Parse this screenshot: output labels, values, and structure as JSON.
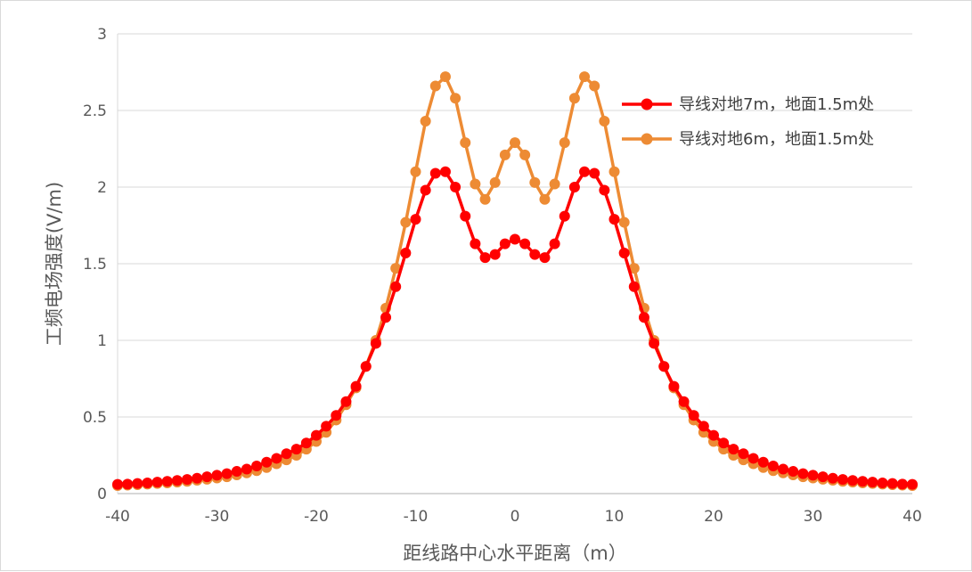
{
  "chart_data": {
    "type": "line",
    "title": "",
    "xlabel": "距线路中心水平距离（m）",
    "ylabel": "工频电场强度(V/m)",
    "xlim": [
      -40,
      40
    ],
    "ylim": [
      0,
      3
    ],
    "xticks": [
      "-40",
      "-30",
      "-20",
      "-10",
      "0",
      "10",
      "20",
      "30",
      "40"
    ],
    "yticks": [
      "0",
      "0.5",
      "1",
      "1.5",
      "2",
      "2.5",
      "3"
    ],
    "grid": "horizontal",
    "legend_position": "top-right",
    "x": [
      -40,
      -39,
      -38,
      -37,
      -36,
      -35,
      -34,
      -33,
      -32,
      -31,
      -30,
      -29,
      -28,
      -27,
      -26,
      -25,
      -24,
      -23,
      -22,
      -21,
      -20,
      -19,
      -18,
      -17,
      -16,
      -15,
      -14,
      -13,
      -12,
      -11,
      -10,
      -9,
      -8,
      -7,
      -6,
      -5,
      -4,
      -3,
      -2,
      -1,
      0,
      1,
      2,
      3,
      4,
      5,
      6,
      7,
      8,
      9,
      10,
      11,
      12,
      13,
      14,
      15,
      16,
      17,
      18,
      19,
      20,
      21,
      22,
      23,
      24,
      25,
      26,
      27,
      28,
      29,
      30,
      31,
      32,
      33,
      34,
      35,
      36,
      37,
      38,
      39,
      40
    ],
    "series": [
      {
        "name": "导线对地7m，地面1.5m处",
        "color": "#ff0000",
        "values": [
          0.06,
          0.062,
          0.066,
          0.07,
          0.075,
          0.08,
          0.086,
          0.092,
          0.1,
          0.11,
          0.12,
          0.13,
          0.145,
          0.16,
          0.18,
          0.205,
          0.23,
          0.26,
          0.29,
          0.33,
          0.38,
          0.44,
          0.51,
          0.6,
          0.7,
          0.83,
          0.98,
          1.15,
          1.35,
          1.57,
          1.79,
          1.98,
          2.09,
          2.1,
          2.0,
          1.81,
          1.63,
          1.54,
          1.56,
          1.63,
          1.66,
          1.63,
          1.56,
          1.54,
          1.63,
          1.81,
          2.0,
          2.1,
          2.09,
          1.98,
          1.79,
          1.57,
          1.35,
          1.15,
          0.98,
          0.83,
          0.7,
          0.6,
          0.51,
          0.44,
          0.38,
          0.33,
          0.29,
          0.26,
          0.23,
          0.205,
          0.18,
          0.16,
          0.145,
          0.13,
          0.12,
          0.11,
          0.1,
          0.092,
          0.086,
          0.08,
          0.075,
          0.07,
          0.066,
          0.062,
          0.06
        ]
      },
      {
        "name": "导线对地6m，地面1.5m处",
        "color": "#ed8b34",
        "values": [
          0.052,
          0.055,
          0.058,
          0.062,
          0.066,
          0.07,
          0.075,
          0.08,
          0.087,
          0.094,
          0.102,
          0.11,
          0.122,
          0.135,
          0.15,
          0.17,
          0.195,
          0.22,
          0.25,
          0.29,
          0.34,
          0.4,
          0.48,
          0.58,
          0.69,
          0.83,
          1.0,
          1.21,
          1.47,
          1.77,
          2.1,
          2.43,
          2.66,
          2.72,
          2.58,
          2.29,
          2.02,
          1.92,
          2.03,
          2.21,
          2.29,
          2.21,
          2.03,
          1.92,
          2.02,
          2.29,
          2.58,
          2.72,
          2.66,
          2.43,
          2.1,
          1.77,
          1.47,
          1.21,
          1.0,
          0.83,
          0.69,
          0.58,
          0.48,
          0.4,
          0.34,
          0.29,
          0.25,
          0.22,
          0.195,
          0.17,
          0.15,
          0.135,
          0.122,
          0.11,
          0.102,
          0.094,
          0.087,
          0.08,
          0.075,
          0.07,
          0.066,
          0.062,
          0.058,
          0.055,
          0.052
        ]
      }
    ]
  },
  "legend": {
    "items": [
      {
        "label": "导线对地7m，地面1.5m处",
        "color": "#ff0000"
      },
      {
        "label": "导线对地6m，地面1.5m处",
        "color": "#ed8b34"
      }
    ]
  },
  "colors": {
    "grid": "#d9d9d9",
    "axis": "#bfbfbf",
    "text": "#595959"
  }
}
